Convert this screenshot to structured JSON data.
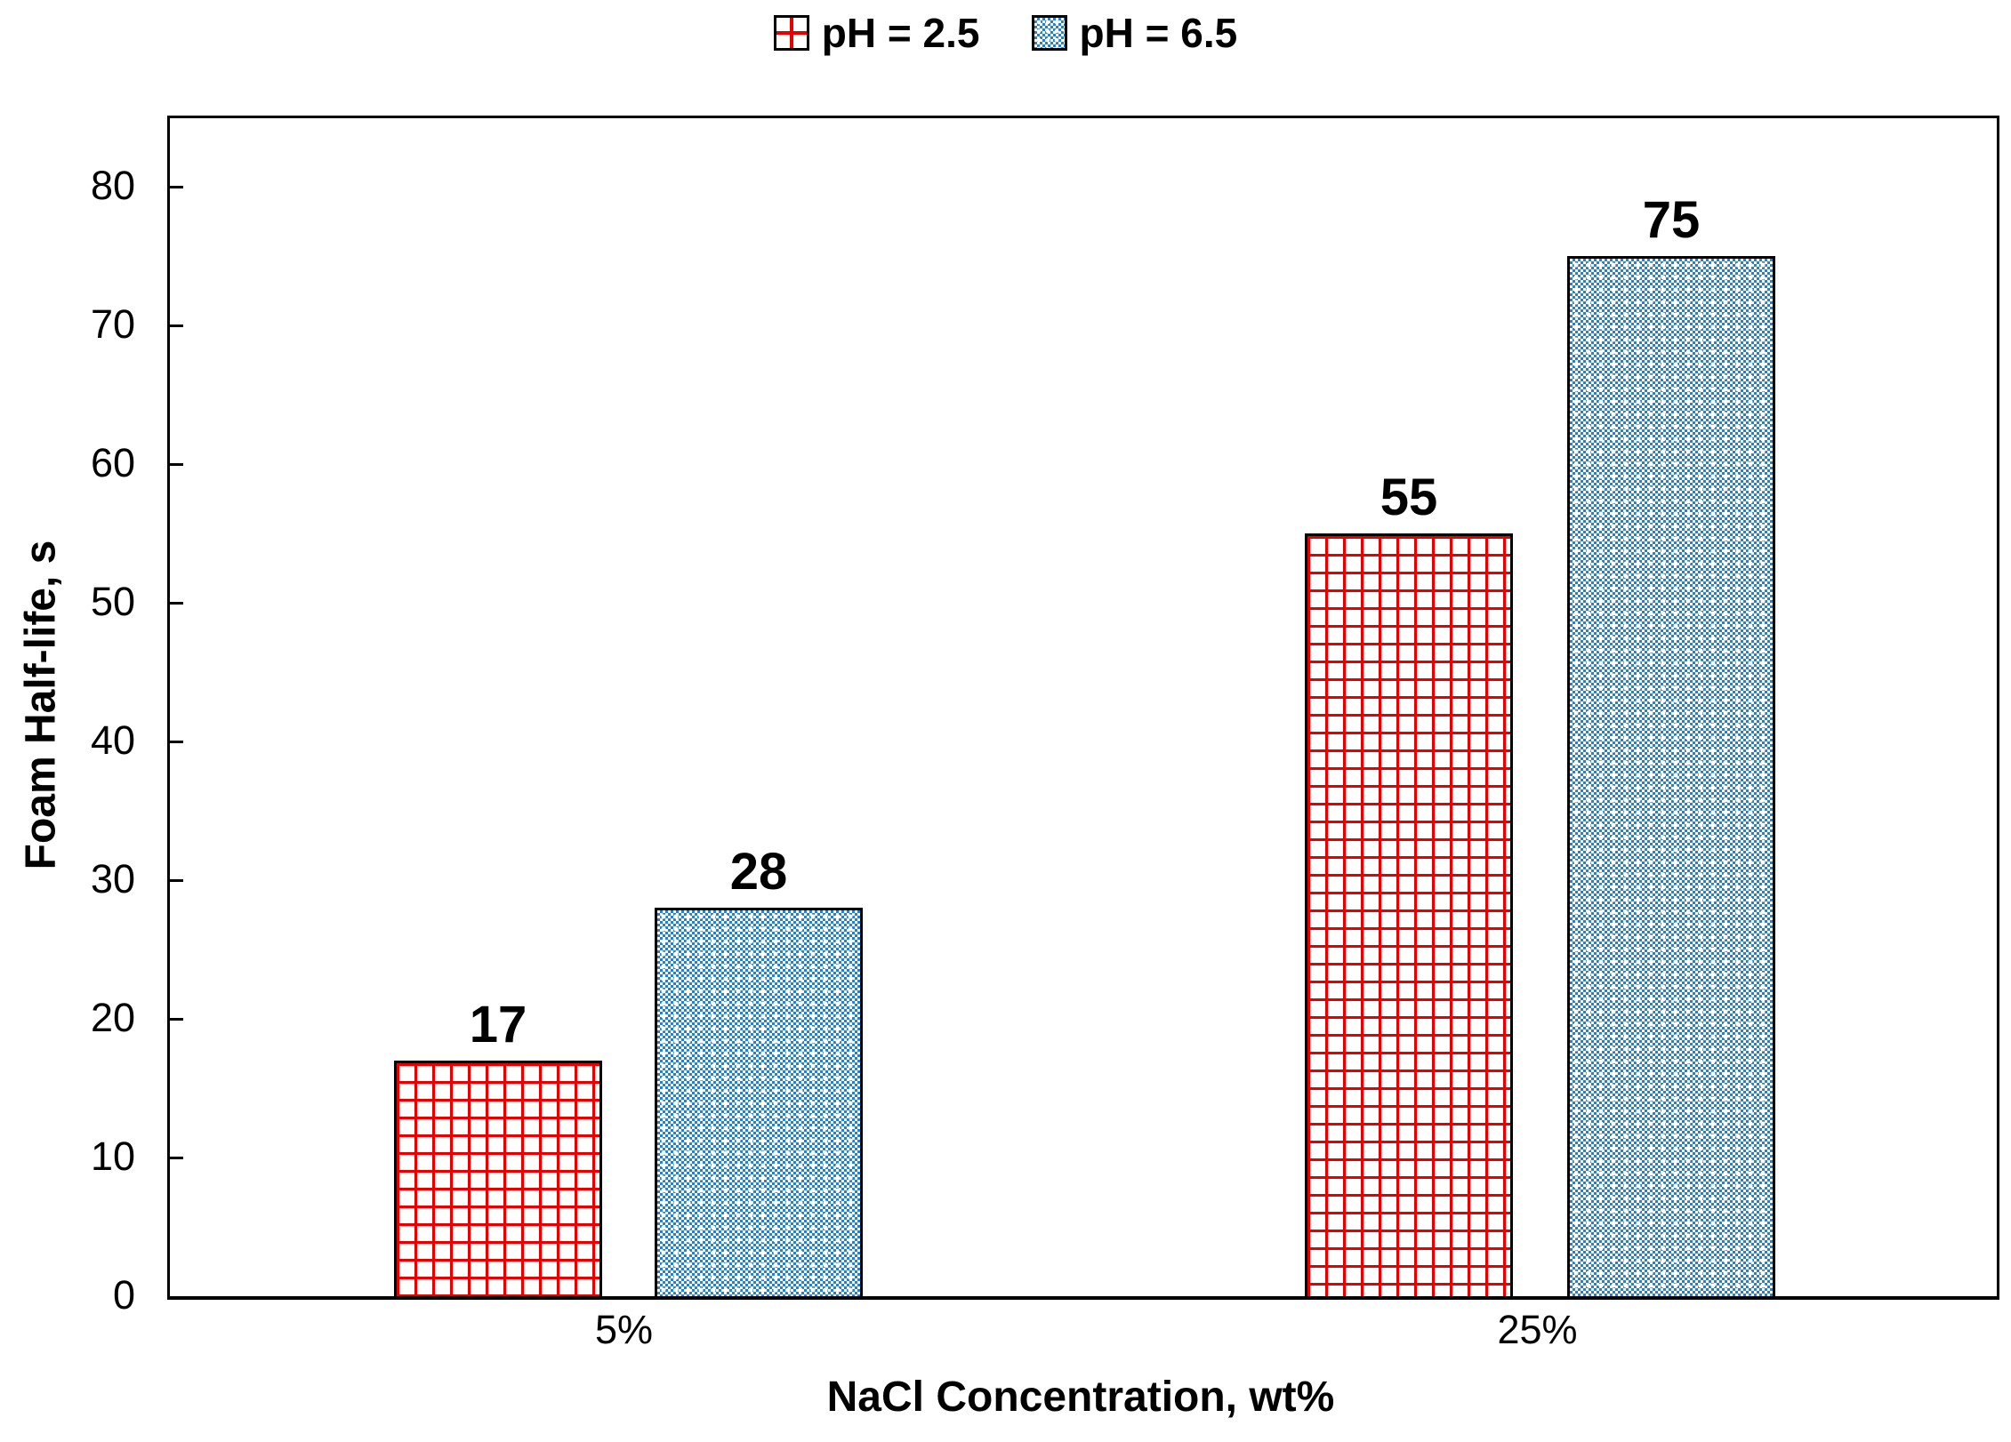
{
  "legend": {
    "items": [
      {
        "label": "pH = 2.5",
        "marker": "red-crosshatch-swatch"
      },
      {
        "label": "pH = 6.5",
        "marker": "blue-dotted-swatch"
      }
    ]
  },
  "chart_data": {
    "type": "bar",
    "categories": [
      "5%",
      "25%"
    ],
    "series": [
      {
        "name": "pH = 2.5",
        "pattern": "red-crosshatch",
        "values": [
          17,
          55
        ]
      },
      {
        "name": "pH = 6.5",
        "pattern": "blue-dots",
        "values": [
          28,
          75
        ]
      }
    ],
    "bar_labels": [
      17,
      28,
      55,
      75
    ],
    "title": "",
    "xlabel": "NaCl Concentration, wt%",
    "ylabel": "Foam Half-life, s",
    "ylim": [
      0,
      85
    ],
    "yticks": [
      0,
      10,
      20,
      30,
      40,
      50,
      60,
      70,
      80
    ],
    "grid": false,
    "legend_position": "top-center",
    "colors": {
      "series1_pattern": "#e80000",
      "series2_pattern": "#2980c9",
      "axis": "#000000",
      "text": "#000000",
      "background": "#ffffff"
    }
  }
}
